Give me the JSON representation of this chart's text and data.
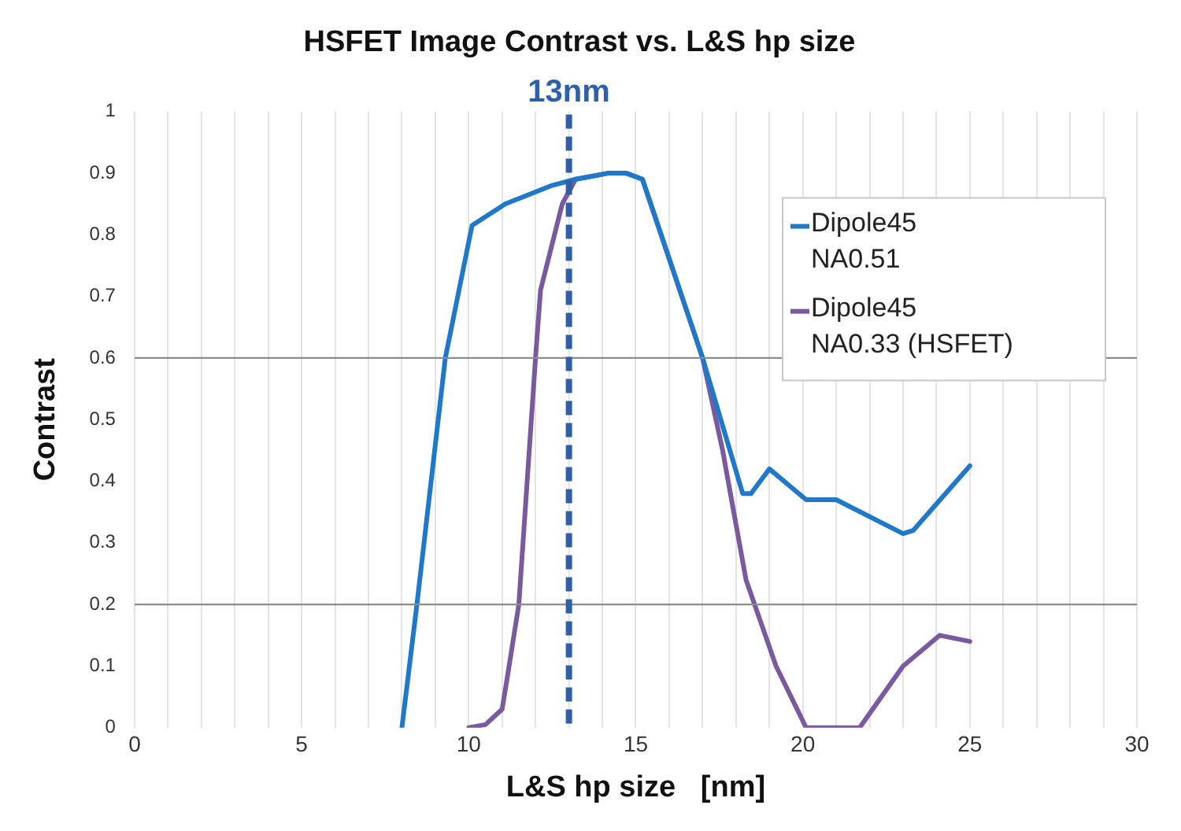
{
  "chart_data": {
    "type": "line",
    "title": "HSFET Image Contrast vs. L&S hp size",
    "xlabel": "L&S hp size   [nm]",
    "ylabel": "Contrast",
    "xlim": [
      0,
      30
    ],
    "xticks": [
      0,
      {
        "value": 1,
        "label": null
      },
      {
        "value": 2,
        "label": null
      },
      {
        "value": 3,
        "label": null
      },
      {
        "value": 4,
        "label": null
      },
      5,
      {
        "value": 6,
        "label": null
      },
      {
        "value": 7,
        "label": null
      },
      {
        "value": 8,
        "label": null
      },
      {
        "value": 9,
        "label": null
      },
      10,
      {
        "value": 11,
        "label": null
      },
      {
        "value": 12,
        "label": null
      },
      {
        "value": 13,
        "label": null
      },
      {
        "value": 14,
        "label": null
      },
      15,
      {
        "value": 16,
        "label": null
      },
      {
        "value": 17,
        "label": null
      },
      {
        "value": 18,
        "label": null
      },
      {
        "value": 19,
        "label": null
      },
      20,
      {
        "value": 21,
        "label": null
      },
      {
        "value": 22,
        "label": null
      },
      {
        "value": 23,
        "label": null
      },
      {
        "value": 24,
        "label": null
      },
      25,
      {
        "value": 26,
        "label": null
      },
      {
        "value": 27,
        "label": null
      },
      {
        "value": 28,
        "label": null
      },
      {
        "value": 29,
        "label": null
      },
      30
    ],
    "ylim": [
      0,
      1
    ],
    "yticks": [
      0,
      0.1,
      0.2,
      0.3,
      0.4,
      0.5,
      0.6,
      0.7,
      0.8,
      0.9,
      1
    ],
    "grid": "x",
    "legend": "top right",
    "marker": "none",
    "line_style": "solid",
    "series": [
      {
        "name": "Dipole45 NA0.51",
        "color": "#1f78c8",
        "x": [
          8,
          8.45,
          9.3,
          10.1,
          11.1,
          12.5,
          13.2,
          14.2,
          14.7,
          15.2,
          17,
          18.2,
          18.45,
          19.0,
          20.1,
          21,
          23,
          23.3,
          25
        ],
        "values": [
          0,
          0.2,
          0.6,
          0.815,
          0.85,
          0.88,
          0.89,
          0.9,
          0.9,
          0.89,
          0.6,
          0.38,
          0.38,
          0.42,
          0.37,
          0.37,
          0.315,
          0.32,
          0.425
        ]
      },
      {
        "name": "Dipole45 NA0.33 (HSFET)",
        "color": "#7a5a9e",
        "x": [
          10,
          10.5,
          11,
          11.15,
          11.5,
          12,
          12.15,
          12.8,
          13.2,
          14.2,
          14.7,
          15.2,
          17,
          17.6,
          18.3,
          19.2,
          20.1,
          21.7,
          23,
          24.1,
          25
        ],
        "values": [
          0,
          0.005,
          0.03,
          0.08,
          0.2,
          0.6,
          0.71,
          0.85,
          0.89,
          0.9,
          0.9,
          0.89,
          0.6,
          0.45,
          0.24,
          0.1,
          0,
          0,
          0.1,
          0.15,
          0.14
        ]
      }
    ],
    "ref_lines": [
      {
        "axis": "y",
        "value": 0.2,
        "color": "#8c8c8c"
      },
      {
        "axis": "y",
        "value": 0.6,
        "color": "#8c8c8c"
      },
      {
        "axis": "x",
        "value": 13,
        "label": "13nm",
        "color": "#2e5fa8",
        "line_style": "dashed"
      }
    ]
  }
}
